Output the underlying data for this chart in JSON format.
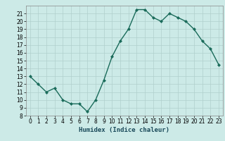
{
  "x": [
    0,
    1,
    2,
    3,
    4,
    5,
    6,
    7,
    8,
    9,
    10,
    11,
    12,
    13,
    14,
    15,
    16,
    17,
    18,
    19,
    20,
    21,
    22,
    23
  ],
  "y": [
    13,
    12,
    11,
    11.5,
    10,
    9.5,
    9.5,
    8.5,
    10,
    12.5,
    15.5,
    17.5,
    19,
    21.5,
    21.5,
    20.5,
    20,
    21,
    20.5,
    20,
    19,
    17.5,
    16.5,
    14.5
  ],
  "line_color": "#1a6b5a",
  "marker": "D",
  "marker_size": 2.0,
  "line_width": 1.0,
  "bg_color": "#cceae7",
  "grid_color": "#b0d0cc",
  "xlabel": "Humidex (Indice chaleur)",
  "xlim": [
    -0.5,
    23.5
  ],
  "ylim": [
    8,
    22
  ],
  "yticks": [
    8,
    9,
    10,
    11,
    12,
    13,
    14,
    15,
    16,
    17,
    18,
    19,
    20,
    21
  ],
  "xticks": [
    0,
    1,
    2,
    3,
    4,
    5,
    6,
    7,
    8,
    9,
    10,
    11,
    12,
    13,
    14,
    15,
    16,
    17,
    18,
    19,
    20,
    21,
    22,
    23
  ],
  "tick_fontsize": 5.5,
  "xlabel_fontsize": 6.5
}
